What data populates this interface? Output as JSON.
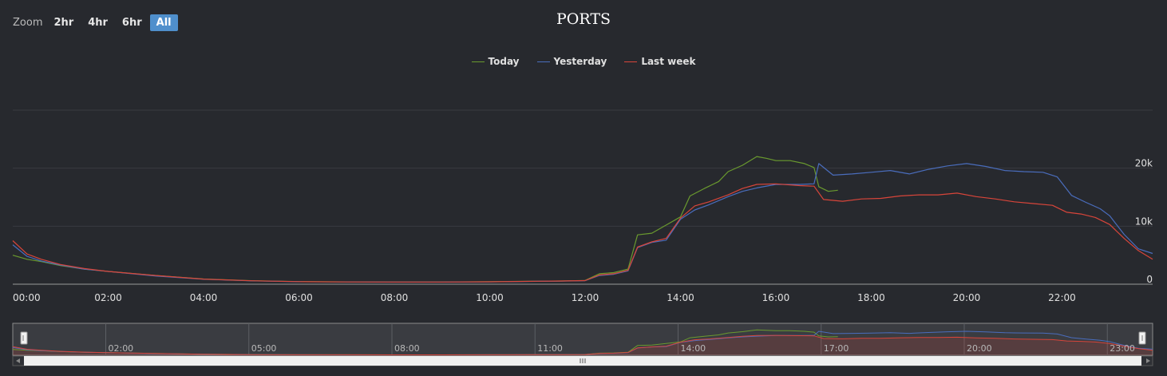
{
  "zoom": {
    "label": "Zoom",
    "buttons": [
      "2hr",
      "4hr",
      "6hr",
      "All"
    ],
    "selected": "All"
  },
  "chart_data": {
    "type": "line",
    "title": "PORTS",
    "xlabel": "",
    "ylabel": "",
    "x_ticks": [
      "00:00",
      "02:00",
      "04:00",
      "06:00",
      "08:00",
      "10:00",
      "12:00",
      "14:00",
      "16:00",
      "18:00",
      "20:00",
      "22:00"
    ],
    "y_ticks": [
      "0",
      "10k",
      "20k"
    ],
    "ylim": [
      0,
      30000
    ],
    "xlim_hours": [
      0,
      23.9
    ],
    "grid": true,
    "legend_position": "top-center",
    "series": [
      {
        "name": "Today",
        "color": "#6a9a2e",
        "points": [
          [
            0,
            5000
          ],
          [
            0.3,
            4300
          ],
          [
            0.6,
            3900
          ],
          [
            1,
            3200
          ],
          [
            1.5,
            2600
          ],
          [
            2,
            2200
          ],
          [
            3,
            1500
          ],
          [
            4,
            900
          ],
          [
            5,
            600
          ],
          [
            6,
            450
          ],
          [
            7,
            400
          ],
          [
            8,
            380
          ],
          [
            9,
            380
          ],
          [
            10,
            420
          ],
          [
            11,
            520
          ],
          [
            11.5,
            550
          ],
          [
            12,
            650
          ],
          [
            12.3,
            1800
          ],
          [
            12.6,
            2000
          ],
          [
            12.9,
            2600
          ],
          [
            13.1,
            8500
          ],
          [
            13.4,
            8800
          ],
          [
            13.7,
            10200
          ],
          [
            14,
            11600
          ],
          [
            14.2,
            15200
          ],
          [
            14.5,
            16500
          ],
          [
            14.8,
            17700
          ],
          [
            15,
            19400
          ],
          [
            15.3,
            20500
          ],
          [
            15.6,
            22000
          ],
          [
            15.8,
            21700
          ],
          [
            16,
            21300
          ],
          [
            16.3,
            21300
          ],
          [
            16.6,
            20800
          ],
          [
            16.8,
            20100
          ],
          [
            16.9,
            16800
          ],
          [
            17.1,
            16000
          ],
          [
            17.3,
            16200
          ]
        ]
      },
      {
        "name": "Yesterday",
        "color": "#4a6dbd",
        "points": [
          [
            0,
            6800
          ],
          [
            0.3,
            4800
          ],
          [
            0.6,
            4000
          ],
          [
            1,
            3300
          ],
          [
            1.5,
            2600
          ],
          [
            2,
            2200
          ],
          [
            3,
            1400
          ],
          [
            4,
            850
          ],
          [
            5,
            580
          ],
          [
            6,
            430
          ],
          [
            7,
            380
          ],
          [
            8,
            360
          ],
          [
            9,
            360
          ],
          [
            10,
            400
          ],
          [
            11,
            500
          ],
          [
            11.5,
            540
          ],
          [
            12,
            600
          ],
          [
            12.3,
            1500
          ],
          [
            12.6,
            1700
          ],
          [
            12.9,
            2300
          ],
          [
            13.1,
            6300
          ],
          [
            13.4,
            7200
          ],
          [
            13.7,
            7600
          ],
          [
            14,
            11200
          ],
          [
            14.3,
            12800
          ],
          [
            14.6,
            13700
          ],
          [
            15,
            15100
          ],
          [
            15.3,
            16000
          ],
          [
            15.6,
            16600
          ],
          [
            16,
            17200
          ],
          [
            16.5,
            17200
          ],
          [
            16.8,
            17300
          ],
          [
            16.9,
            20800
          ],
          [
            17.2,
            18800
          ],
          [
            17.6,
            19000
          ],
          [
            18,
            19300
          ],
          [
            18.4,
            19600
          ],
          [
            18.8,
            19000
          ],
          [
            19.2,
            19800
          ],
          [
            19.6,
            20400
          ],
          [
            20,
            20800
          ],
          [
            20.4,
            20300
          ],
          [
            20.8,
            19600
          ],
          [
            21.2,
            19400
          ],
          [
            21.6,
            19300
          ],
          [
            21.9,
            18500
          ],
          [
            22.2,
            15300
          ],
          [
            22.5,
            14100
          ],
          [
            22.8,
            13000
          ],
          [
            23,
            11800
          ],
          [
            23.3,
            8600
          ],
          [
            23.6,
            6100
          ],
          [
            23.9,
            5300
          ]
        ]
      },
      {
        "name": "Last week",
        "color": "#d8453a",
        "points": [
          [
            0,
            7500
          ],
          [
            0.3,
            5200
          ],
          [
            0.6,
            4300
          ],
          [
            1,
            3400
          ],
          [
            1.5,
            2700
          ],
          [
            2,
            2200
          ],
          [
            3,
            1500
          ],
          [
            4,
            880
          ],
          [
            5,
            590
          ],
          [
            6,
            440
          ],
          [
            7,
            390
          ],
          [
            8,
            370
          ],
          [
            9,
            370
          ],
          [
            10,
            410
          ],
          [
            11,
            510
          ],
          [
            11.5,
            545
          ],
          [
            12,
            620
          ],
          [
            12.3,
            1600
          ],
          [
            12.6,
            1800
          ],
          [
            12.9,
            2400
          ],
          [
            13.1,
            6400
          ],
          [
            13.4,
            7300
          ],
          [
            13.7,
            7900
          ],
          [
            14,
            11400
          ],
          [
            14.3,
            13500
          ],
          [
            14.6,
            14200
          ],
          [
            15,
            15400
          ],
          [
            15.3,
            16500
          ],
          [
            15.6,
            17200
          ],
          [
            16,
            17300
          ],
          [
            16.5,
            17000
          ],
          [
            16.8,
            16900
          ],
          [
            17,
            14600
          ],
          [
            17.4,
            14300
          ],
          [
            17.8,
            14700
          ],
          [
            18.2,
            14800
          ],
          [
            18.6,
            15200
          ],
          [
            19,
            15400
          ],
          [
            19.4,
            15400
          ],
          [
            19.8,
            15700
          ],
          [
            20.2,
            15100
          ],
          [
            20.6,
            14700
          ],
          [
            21,
            14200
          ],
          [
            21.4,
            13900
          ],
          [
            21.8,
            13600
          ],
          [
            22.1,
            12400
          ],
          [
            22.4,
            12100
          ],
          [
            22.7,
            11500
          ],
          [
            23,
            10300
          ],
          [
            23.3,
            7900
          ],
          [
            23.6,
            5800
          ],
          [
            23.9,
            4300
          ]
        ]
      }
    ],
    "navigator": {
      "x_ticks": [
        "02:00",
        "05:00",
        "08:00",
        "11:00",
        "14:00",
        "17:00",
        "20:00",
        "23:00"
      ]
    }
  }
}
